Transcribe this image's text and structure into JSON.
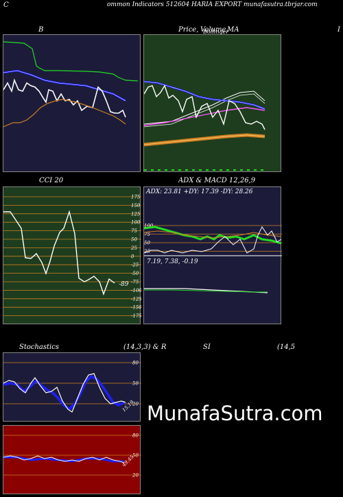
{
  "header": {
    "left_letter": "C",
    "title": "ommon  Indicators 512604  HARIA EXPORT munafasutra.tbrjar.com"
  },
  "panels": {
    "bollinger": {
      "label": "B"
    },
    "price": {
      "label_a": "Price,",
      "label_b": "Volume,",
      "label_c": "Bollinger",
      "label_d": "MA",
      "right_edge": "I"
    },
    "cci": {
      "label": "CCI 20",
      "ticks": [
        "175",
        "150",
        "125",
        "100",
        "75",
        "50",
        "25",
        "0",
        "-25",
        "-50",
        "-75",
        "-100",
        "-125",
        "-150",
        "-175"
      ],
      "current": "-89"
    },
    "adx_macd": {
      "label": "ADX  & MACD 12,26,9",
      "adx_readout": "ADX: 23.81 +DY: 17.39 -DY: 28.26",
      "macd_readout": "7.19,  7.38,  -0.19",
      "adx_ticks": [
        "100",
        "75",
        "50",
        "25"
      ]
    },
    "stochastics": {
      "label": "Stochastics",
      "params": "(14,3,3) & R",
      "ticks": [
        "80",
        "50",
        "20"
      ],
      "end_label": "15,19"
    },
    "rsi": {
      "label": "SI",
      "params": "(14,5",
      "ticks": [
        "80",
        "50",
        "20"
      ],
      "end_label": "49,45"
    }
  },
  "watermark": "MunafaSutra.com",
  "colors": {
    "navy": "#1c1c3a",
    "green_bg": "#1e3d1e",
    "maroon": "#8b0000",
    "orange": "#d08020",
    "blue": "#1e1eff",
    "lime": "#22dd22"
  }
}
